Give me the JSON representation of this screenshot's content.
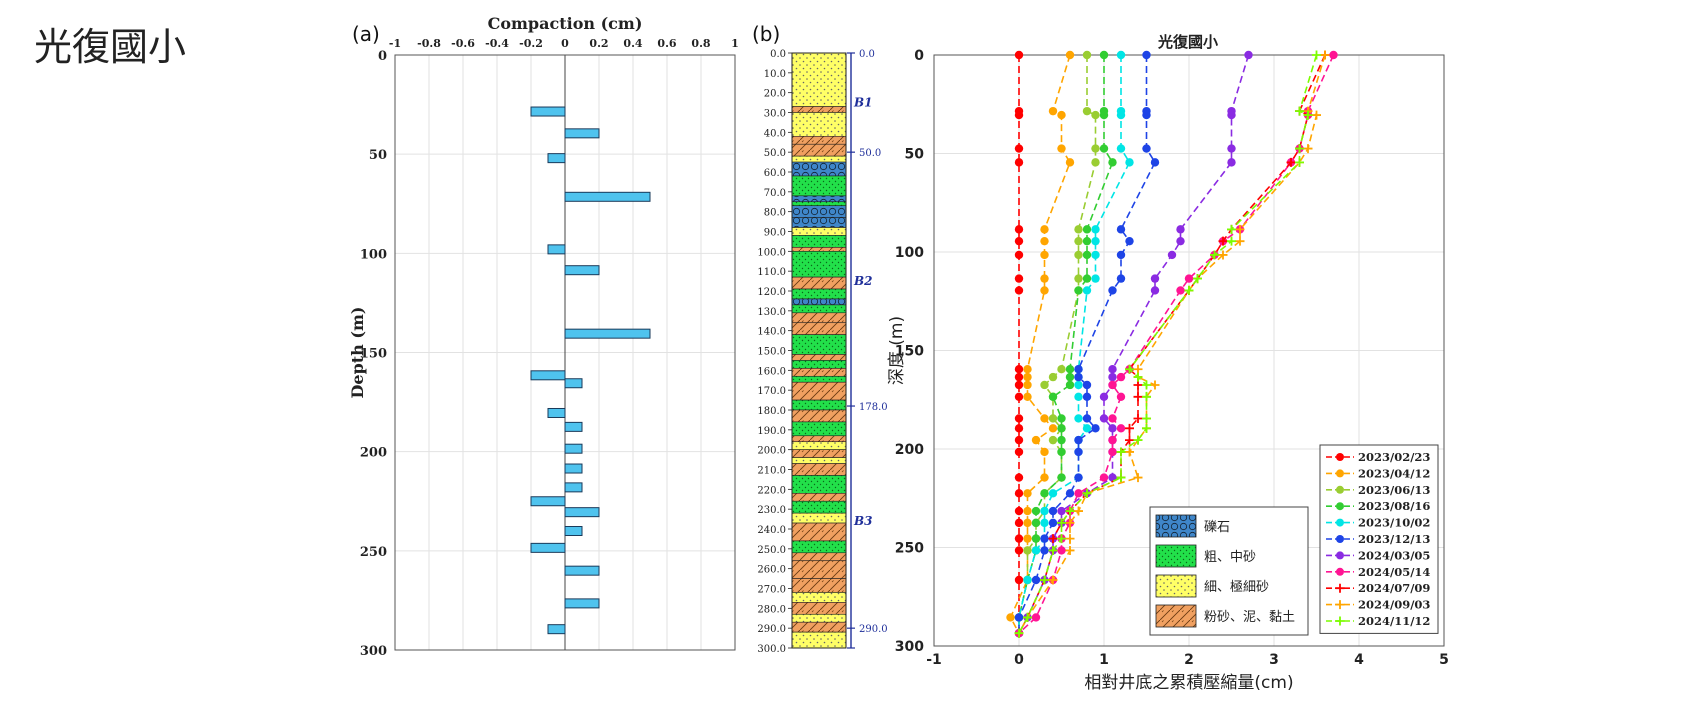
{
  "page": {
    "title": "光復國小",
    "panel_a_label": "(a)",
    "panel_b_label": "(b)"
  },
  "colors": {
    "bar_fill": "#4fc3ee",
    "gravel": "#3f86c9",
    "coarse_sand": "#22e04a",
    "fine_sand": "#ffff66",
    "silt_clay": "#f0a060",
    "depth_scale": "#1f2f9a"
  },
  "chart_data": [
    {
      "id": "compaction",
      "type": "bar",
      "orientation": "horizontal",
      "title": "Compaction (cm)",
      "xlabel": "",
      "ylabel": "Depth (m)",
      "xlim": [
        -1,
        1
      ],
      "ylim": [
        0,
        300
      ],
      "x_ticks": [
        "-1",
        "-0.8",
        "-0.6",
        "-0.4",
        "-0.2",
        "0",
        "0.2",
        "0.4",
        "0.6",
        "0.8",
        "1"
      ],
      "y_ticks": [
        "0",
        "50",
        "100",
        "150",
        "200",
        "250",
        "300"
      ],
      "grid": true,
      "depths": [
        28.5,
        39.5,
        52.0,
        71.5,
        98.0,
        108.5,
        140.5,
        161.5,
        165.5,
        180.5,
        187.5,
        198.5,
        208.5,
        218.0,
        225.0,
        230.5,
        240.0,
        248.5,
        260.0,
        276.5,
        289.5
      ],
      "values": [
        -0.2,
        0.2,
        -0.1,
        0.5,
        -0.1,
        0.2,
        0.5,
        -0.2,
        0.1,
        -0.1,
        0.1,
        0.1,
        0.1,
        0.1,
        -0.2,
        0.2,
        0.1,
        -0.2,
        0.2,
        0.2,
        -0.1
      ]
    },
    {
      "id": "stratigraphic-column",
      "type": "table",
      "depth_range": [
        0,
        300
      ],
      "depth_ticks": [
        "0.0",
        "10.0",
        "20.0",
        "30.0",
        "40.0",
        "50.0",
        "60.0",
        "70.0",
        "80.0",
        "90.0",
        "100.0",
        "110.0",
        "120.0",
        "130.0",
        "140.0",
        "150.0",
        "160.0",
        "170.0",
        "180.0",
        "190.0",
        "200.0",
        "210.0",
        "220.0",
        "230.0",
        "240.0",
        "250.0",
        "260.0",
        "270.0",
        "280.0",
        "290.0",
        "300.0"
      ],
      "layers": [
        {
          "top": 0,
          "bottom": 27,
          "type": "fine_sand"
        },
        {
          "top": 27,
          "bottom": 30,
          "type": "silt_clay"
        },
        {
          "top": 30,
          "bottom": 42,
          "type": "fine_sand"
        },
        {
          "top": 42,
          "bottom": 46,
          "type": "silt_clay"
        },
        {
          "top": 46,
          "bottom": 52,
          "type": "silt_clay"
        },
        {
          "top": 52,
          "bottom": 55,
          "type": "fine_sand"
        },
        {
          "top": 55,
          "bottom": 62,
          "type": "gravel"
        },
        {
          "top": 62,
          "bottom": 72,
          "type": "coarse_sand"
        },
        {
          "top": 72,
          "bottom": 75,
          "type": "gravel"
        },
        {
          "top": 75,
          "bottom": 77,
          "type": "coarse_sand"
        },
        {
          "top": 77,
          "bottom": 83,
          "type": "gravel"
        },
        {
          "top": 83,
          "bottom": 88,
          "type": "gravel"
        },
        {
          "top": 88,
          "bottom": 92,
          "type": "fine_sand"
        },
        {
          "top": 92,
          "bottom": 98,
          "type": "coarse_sand"
        },
        {
          "top": 98,
          "bottom": 100,
          "type": "silt_clay"
        },
        {
          "top": 100,
          "bottom": 113,
          "type": "coarse_sand"
        },
        {
          "top": 113,
          "bottom": 119,
          "type": "silt_clay"
        },
        {
          "top": 119,
          "bottom": 124,
          "type": "coarse_sand"
        },
        {
          "top": 124,
          "bottom": 127,
          "type": "gravel"
        },
        {
          "top": 127,
          "bottom": 131,
          "type": "coarse_sand"
        },
        {
          "top": 131,
          "bottom": 136,
          "type": "silt_clay"
        },
        {
          "top": 136,
          "bottom": 142,
          "type": "silt_clay"
        },
        {
          "top": 142,
          "bottom": 152,
          "type": "coarse_sand"
        },
        {
          "top": 152,
          "bottom": 155,
          "type": "silt_clay"
        },
        {
          "top": 155,
          "bottom": 159,
          "type": "coarse_sand"
        },
        {
          "top": 159,
          "bottom": 163,
          "type": "silt_clay"
        },
        {
          "top": 163,
          "bottom": 166,
          "type": "coarse_sand"
        },
        {
          "top": 166,
          "bottom": 175,
          "type": "silt_clay"
        },
        {
          "top": 175,
          "bottom": 180,
          "type": "coarse_sand"
        },
        {
          "top": 180,
          "bottom": 186,
          "type": "silt_clay"
        },
        {
          "top": 186,
          "bottom": 193,
          "type": "coarse_sand"
        },
        {
          "top": 193,
          "bottom": 196,
          "type": "silt_clay"
        },
        {
          "top": 196,
          "bottom": 200,
          "type": "fine_sand"
        },
        {
          "top": 200,
          "bottom": 204,
          "type": "silt_clay"
        },
        {
          "top": 204,
          "bottom": 207,
          "type": "fine_sand"
        },
        {
          "top": 207,
          "bottom": 213,
          "type": "silt_clay"
        },
        {
          "top": 213,
          "bottom": 222,
          "type": "coarse_sand"
        },
        {
          "top": 222,
          "bottom": 226,
          "type": "silt_clay"
        },
        {
          "top": 226,
          "bottom": 232,
          "type": "coarse_sand"
        },
        {
          "top": 232,
          "bottom": 237,
          "type": "fine_sand"
        },
        {
          "top": 237,
          "bottom": 246,
          "type": "silt_clay"
        },
        {
          "top": 246,
          "bottom": 252,
          "type": "coarse_sand"
        },
        {
          "top": 252,
          "bottom": 256,
          "type": "silt_clay"
        },
        {
          "top": 256,
          "bottom": 265,
          "type": "silt_clay"
        },
        {
          "top": 265,
          "bottom": 272,
          "type": "silt_clay"
        },
        {
          "top": 272,
          "bottom": 277,
          "type": "fine_sand"
        },
        {
          "top": 277,
          "bottom": 283,
          "type": "silt_clay"
        },
        {
          "top": 283,
          "bottom": 287,
          "type": "fine_sand"
        },
        {
          "top": 287,
          "bottom": 292,
          "type": "silt_clay"
        },
        {
          "top": 292,
          "bottom": 300,
          "type": "fine_sand"
        }
      ],
      "unit_labels": [
        {
          "text": "B1",
          "depth": 24
        },
        {
          "text": "B2",
          "depth": 114
        },
        {
          "text": "B3",
          "depth": 235
        }
      ],
      "boundary_labels": [
        {
          "text": "0.0",
          "depth": 0
        },
        {
          "text": "50.0",
          "depth": 50
        },
        {
          "text": "178.0",
          "depth": 178
        },
        {
          "text": "290.0",
          "depth": 290
        }
      ]
    },
    {
      "id": "cumulative-compaction",
      "type": "line",
      "title": "光復國小",
      "xlabel": "相對井底之累積壓縮量(cm)",
      "ylabel": "深度 (m)",
      "xlim": [
        -1,
        5
      ],
      "ylim": [
        0,
        300
      ],
      "x_ticks": [
        "-1",
        "0",
        "1",
        "2",
        "3",
        "4",
        "5"
      ],
      "y_ticks": [
        "0",
        "50",
        "100",
        "150",
        "200",
        "250",
        "300"
      ],
      "grid": true,
      "legend_position": "bottom-right",
      "depths": [
        0,
        28.5,
        30.5,
        47.5,
        54.5,
        88.5,
        94.5,
        101.5,
        113.5,
        119.5,
        159.5,
        163.5,
        167.5,
        173.5,
        184.5,
        189.5,
        195.5,
        201.5,
        214.5,
        222.5,
        231.5,
        237.5,
        245.5,
        251.5,
        266.5,
        285.5,
        293.5
      ],
      "series": [
        {
          "name": "2023/02/23",
          "marker": "circle",
          "color": "#ff0000",
          "values": [
            0,
            0,
            0,
            0,
            0,
            0,
            0,
            0,
            0,
            0,
            0,
            0,
            0,
            0,
            0,
            0,
            0,
            0,
            0,
            0,
            0,
            0,
            0,
            0,
            0,
            0,
            0
          ]
        },
        {
          "name": "2023/04/12",
          "marker": "circle",
          "color": "#ffa500",
          "values": [
            0.6,
            0.4,
            0.5,
            0.5,
            0.6,
            0.3,
            0.3,
            0.3,
            0.3,
            0.3,
            0.1,
            0.1,
            0.1,
            0.1,
            0.3,
            0.4,
            0.2,
            0.3,
            0.3,
            0.1,
            0.1,
            0.1,
            0.1,
            0.1,
            0.1,
            -0.1,
            0
          ]
        },
        {
          "name": "2023/06/13",
          "marker": "circle",
          "color": "#9acd32",
          "values": [
            0.8,
            0.8,
            0.9,
            0.9,
            0.9,
            0.7,
            0.7,
            0.7,
            0.7,
            0.7,
            0.5,
            0.4,
            0.3,
            0.4,
            0.4,
            0.5,
            0.4,
            0.5,
            0.5,
            0.3,
            0.3,
            0.2,
            0.2,
            0.1,
            0.1,
            0,
            0
          ]
        },
        {
          "name": "2023/08/16",
          "marker": "circle",
          "color": "#32cd32",
          "values": [
            1.0,
            1.0,
            1.0,
            1.0,
            1.1,
            0.8,
            0.8,
            0.8,
            0.8,
            0.7,
            0.6,
            0.6,
            0.6,
            0.4,
            0.5,
            0.5,
            0.5,
            0.5,
            0.5,
            0.3,
            0.2,
            0.2,
            0.2,
            0.2,
            0.1,
            0,
            0
          ]
        },
        {
          "name": "2023/10/02",
          "marker": "circle",
          "color": "#00e5e5",
          "values": [
            1.2,
            1.2,
            1.2,
            1.2,
            1.3,
            0.9,
            0.9,
            0.9,
            0.9,
            0.8,
            0.7,
            0.7,
            0.7,
            0.7,
            0.7,
            0.8,
            0.7,
            0.7,
            0.7,
            0.4,
            0.3,
            0.3,
            0.3,
            0.2,
            0.1,
            0,
            0
          ]
        },
        {
          "name": "2023/12/13",
          "marker": "circle",
          "color": "#1e44e6",
          "values": [
            1.5,
            1.5,
            1.5,
            1.5,
            1.6,
            1.2,
            1.3,
            1.2,
            1.2,
            1.1,
            0.7,
            0.7,
            0.8,
            0.8,
            0.8,
            0.9,
            0.7,
            0.7,
            0.7,
            0.6,
            0.4,
            0.4,
            0.3,
            0.3,
            0.2,
            0,
            0
          ]
        },
        {
          "name": "2024/03/05",
          "marker": "circle",
          "color": "#8a2be2",
          "values": [
            2.7,
            2.5,
            2.5,
            2.5,
            2.5,
            1.9,
            1.9,
            1.8,
            1.6,
            1.6,
            1.1,
            1.1,
            1.1,
            1.0,
            1.0,
            1.1,
            1.1,
            1.1,
            1.1,
            0.8,
            0.5,
            0.5,
            0.4,
            0.4,
            0.3,
            0.1,
            0
          ]
        },
        {
          "name": "2024/05/14",
          "marker": "circle",
          "color": "#ff1493",
          "values": [
            3.7,
            3.4,
            3.4,
            3.3,
            3.2,
            2.6,
            2.4,
            2.3,
            2.0,
            1.9,
            1.3,
            1.2,
            1.1,
            1.2,
            1.1,
            1.2,
            1.1,
            1.1,
            1.0,
            0.7,
            0.6,
            0.6,
            0.5,
            0.5,
            0.4,
            0.2,
            0
          ]
        },
        {
          "name": "2024/07/09",
          "marker": "plus",
          "color": "#ff0000",
          "values": [
            3.6,
            3.3,
            3.4,
            3.3,
            3.2,
            2.5,
            2.4,
            2.3,
            2.1,
            2.0,
            1.3,
            1.4,
            1.4,
            1.4,
            1.4,
            1.3,
            1.3,
            1.2,
            1.2,
            0.8,
            0.6,
            0.5,
            0.4,
            0.4,
            0.3,
            0.1,
            0
          ]
        },
        {
          "name": "2024/09/03",
          "marker": "plus",
          "color": "#ffa500",
          "values": [
            3.6,
            3.4,
            3.5,
            3.4,
            3.3,
            2.6,
            2.6,
            2.4,
            2.1,
            2.0,
            1.4,
            1.4,
            1.6,
            1.5,
            1.5,
            1.5,
            1.4,
            1.3,
            1.4,
            0.8,
            0.7,
            0.6,
            0.6,
            0.6,
            0.4,
            0.1,
            0
          ]
        },
        {
          "name": "2024/11/12",
          "marker": "plus",
          "color": "#7cfc00",
          "values": [
            3.5,
            3.3,
            3.4,
            3.3,
            3.3,
            2.5,
            2.5,
            2.3,
            2.1,
            2.0,
            1.3,
            1.4,
            1.5,
            1.5,
            1.5,
            1.5,
            1.4,
            1.2,
            1.2,
            0.8,
            0.6,
            0.5,
            0.5,
            0.4,
            0.3,
            0.1,
            0
          ]
        }
      ]
    }
  ],
  "lithology_legend": [
    {
      "key": "gravel",
      "label": "礫石"
    },
    {
      "key": "coarse_sand",
      "label": "粗、中砂"
    },
    {
      "key": "fine_sand",
      "label": "細、極細砂"
    },
    {
      "key": "silt_clay",
      "label": "粉砂、泥、黏土"
    }
  ]
}
